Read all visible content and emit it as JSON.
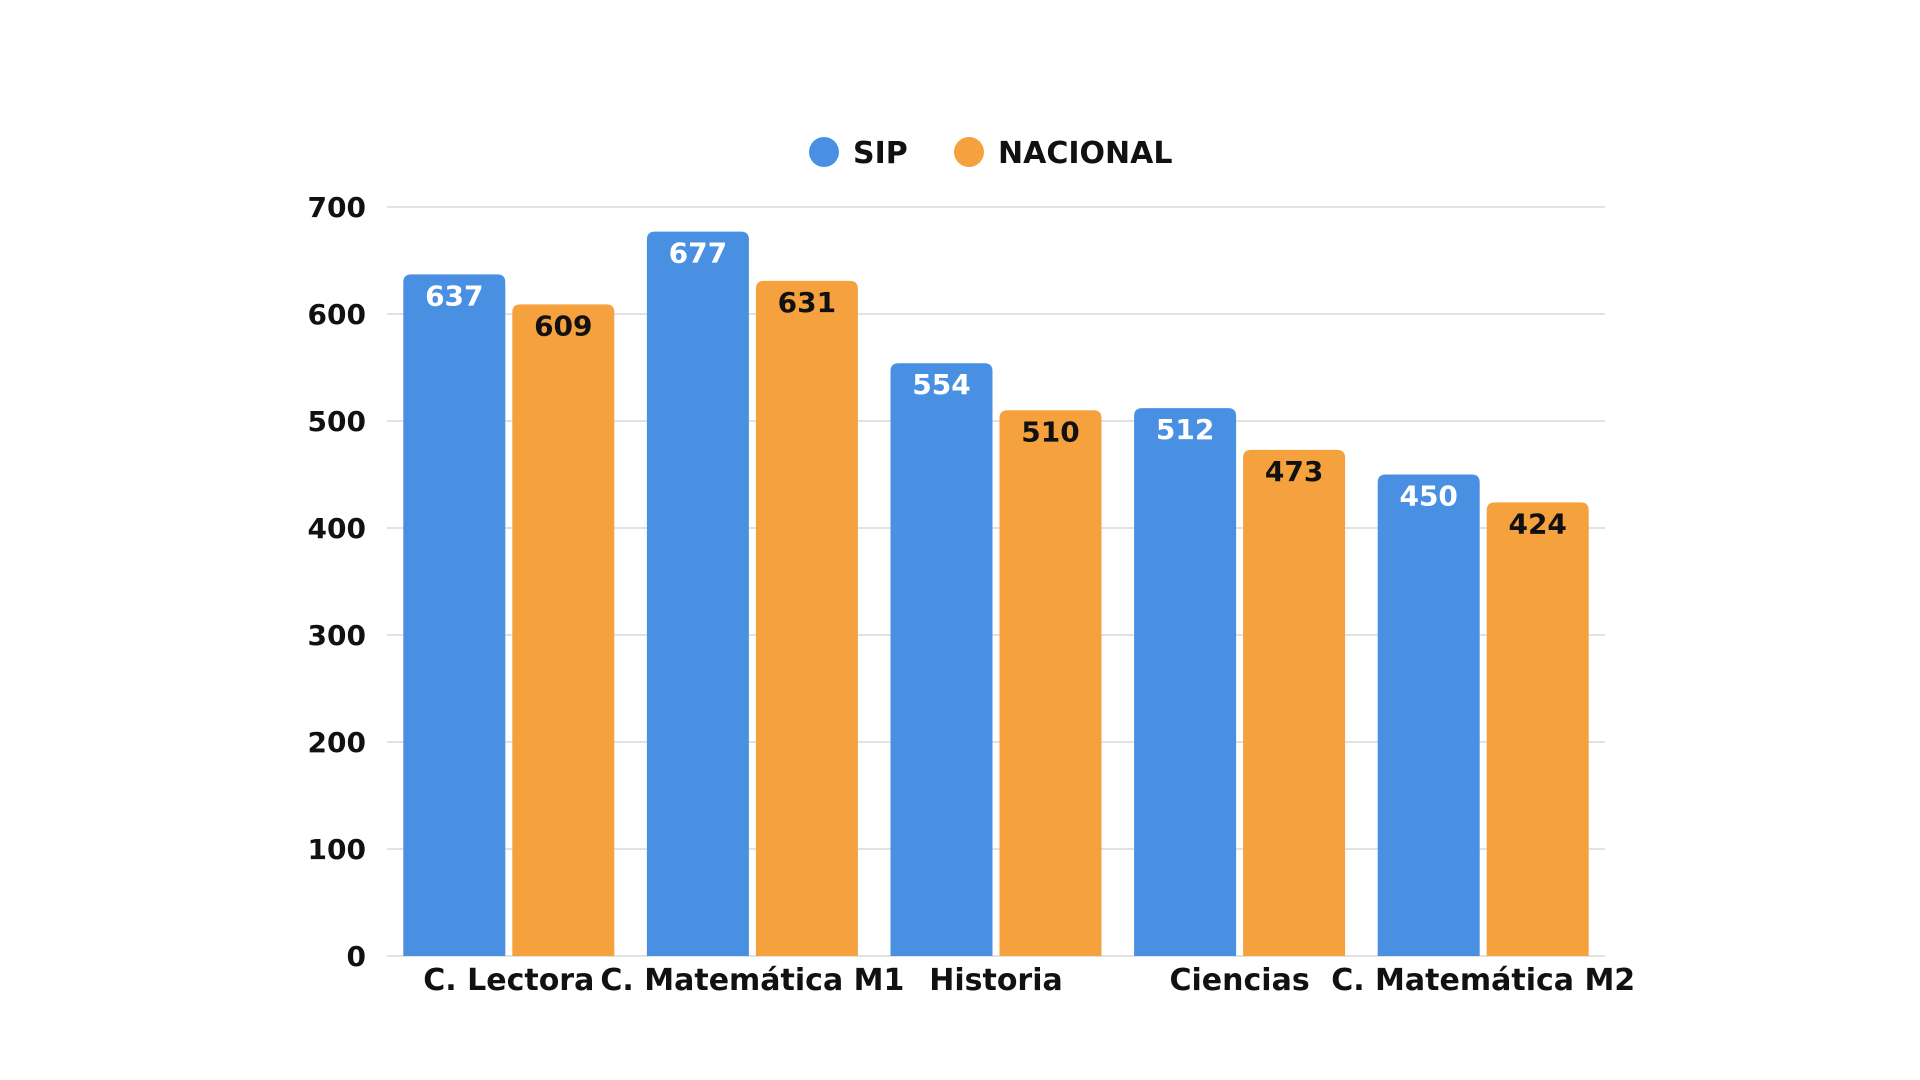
{
  "chart_data": {
    "type": "bar",
    "categories": [
      "C. Lectora",
      "C. Matemática M1",
      "Historia",
      "Ciencias",
      "C. Matemática M2"
    ],
    "series": [
      {
        "name": "SIP",
        "values": [
          637,
          677,
          554,
          512,
          450
        ],
        "color": "#4A90E2",
        "label_color": "#ffffff"
      },
      {
        "name": "NACIONAL",
        "values": [
          609,
          631,
          510,
          473,
          424
        ],
        "color": "#F5A13D",
        "label_color": "#111111"
      }
    ],
    "ylim": [
      0,
      700
    ],
    "yticks": [
      0,
      100,
      200,
      300,
      400,
      500,
      600,
      700
    ],
    "grid": true,
    "legend_position": "top-center",
    "title": "",
    "xlabel": "",
    "ylabel": ""
  }
}
